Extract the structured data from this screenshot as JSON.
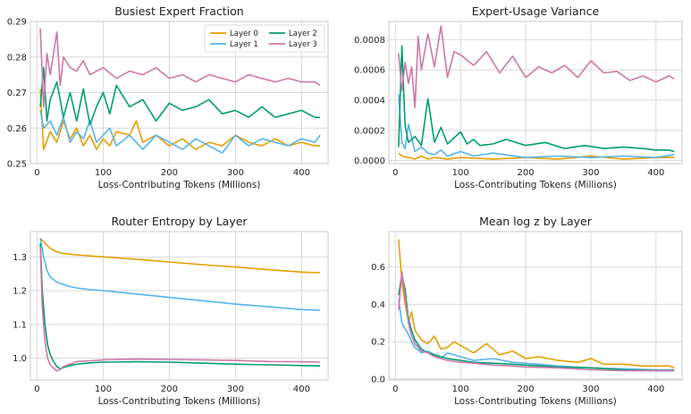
{
  "figure": {
    "background": "#ffffff",
    "plot_bg": "#ffffff",
    "grid_color": "#d9d9d9",
    "frame_color": "#c8c8c8"
  },
  "palette": {
    "Layer 0": "#e69f00",
    "Layer 1": "#56b4e9",
    "Layer 2": "#009e73",
    "Layer 3": "#cc79a7"
  },
  "chart_data": [
    {
      "type": "line",
      "title": "Busiest Expert Fraction",
      "xlabel": "Loss-Contributing Tokens (Millions)",
      "ylabel": "",
      "xlim": [
        -10,
        440
      ],
      "ylim": [
        0.25,
        0.29
      ],
      "xticks": [
        0,
        100,
        200,
        300,
        400
      ],
      "yticks": [
        0.25,
        0.26,
        0.27,
        0.28,
        0.29
      ],
      "ytick_labels": [
        "0.25",
        "0.26",
        "0.27",
        "0.28",
        "0.29"
      ],
      "grid": true,
      "legend": {
        "placement": "top-right",
        "columns": 2,
        "entries": [
          "Layer 0",
          "Layer 1",
          "Layer 2",
          "Layer 3"
        ]
      },
      "series": [
        {
          "name": "Layer 0",
          "color": "#e69f00",
          "x": [
            5,
            10,
            20,
            30,
            40,
            50,
            60,
            70,
            80,
            90,
            100,
            110,
            120,
            140,
            150,
            160,
            180,
            200,
            220,
            240,
            260,
            280,
            300,
            320,
            340,
            360,
            380,
            400,
            420,
            428
          ],
          "y": [
            0.271,
            0.254,
            0.259,
            0.256,
            0.262,
            0.257,
            0.26,
            0.255,
            0.258,
            0.254,
            0.257,
            0.255,
            0.259,
            0.258,
            0.262,
            0.256,
            0.258,
            0.255,
            0.257,
            0.254,
            0.256,
            0.255,
            0.258,
            0.256,
            0.255,
            0.257,
            0.255,
            0.256,
            0.255,
            0.255
          ]
        },
        {
          "name": "Layer 1",
          "color": "#56b4e9",
          "x": [
            5,
            10,
            20,
            30,
            40,
            50,
            60,
            70,
            80,
            90,
            100,
            110,
            120,
            140,
            160,
            180,
            200,
            220,
            240,
            260,
            280,
            300,
            320,
            340,
            360,
            380,
            400,
            420,
            428
          ],
          "y": [
            0.265,
            0.26,
            0.262,
            0.258,
            0.263,
            0.256,
            0.259,
            0.257,
            0.262,
            0.256,
            0.258,
            0.26,
            0.255,
            0.258,
            0.254,
            0.258,
            0.256,
            0.254,
            0.257,
            0.255,
            0.253,
            0.258,
            0.255,
            0.257,
            0.256,
            0.255,
            0.257,
            0.256,
            0.258
          ]
        },
        {
          "name": "Layer 2",
          "color": "#009e73",
          "x": [
            5,
            10,
            15,
            20,
            30,
            40,
            50,
            60,
            70,
            80,
            90,
            100,
            110,
            120,
            140,
            160,
            180,
            200,
            220,
            240,
            260,
            280,
            300,
            320,
            340,
            360,
            380,
            400,
            420,
            428
          ],
          "y": [
            0.266,
            0.277,
            0.262,
            0.268,
            0.273,
            0.263,
            0.27,
            0.262,
            0.271,
            0.261,
            0.266,
            0.27,
            0.264,
            0.272,
            0.266,
            0.268,
            0.262,
            0.267,
            0.265,
            0.266,
            0.268,
            0.264,
            0.265,
            0.263,
            0.266,
            0.263,
            0.264,
            0.265,
            0.263,
            0.263
          ]
        },
        {
          "name": "Layer 3",
          "color": "#cc79a7",
          "x": [
            5,
            10,
            15,
            20,
            30,
            35,
            40,
            50,
            60,
            70,
            80,
            90,
            100,
            120,
            140,
            160,
            180,
            200,
            220,
            240,
            260,
            280,
            300,
            320,
            340,
            360,
            380,
            400,
            420,
            428
          ],
          "y": [
            0.288,
            0.266,
            0.281,
            0.275,
            0.287,
            0.272,
            0.28,
            0.277,
            0.276,
            0.279,
            0.275,
            0.276,
            0.277,
            0.274,
            0.276,
            0.275,
            0.277,
            0.274,
            0.275,
            0.273,
            0.275,
            0.274,
            0.273,
            0.275,
            0.274,
            0.273,
            0.274,
            0.273,
            0.273,
            0.272
          ]
        }
      ]
    },
    {
      "type": "line",
      "title": "Expert-Usage Variance",
      "xlabel": "Loss-Contributing Tokens (Millions)",
      "ylabel": "",
      "xlim": [
        -10,
        440
      ],
      "ylim": [
        -2e-05,
        0.00092
      ],
      "xticks": [
        0,
        100,
        200,
        300,
        400
      ],
      "yticks": [
        0,
        0.0002,
        0.0004,
        0.0006,
        0.0008
      ],
      "ytick_labels": [
        "0.0000",
        "0.0002",
        "0.0004",
        "0.0006",
        "0.0008"
      ],
      "grid": true,
      "series": [
        {
          "name": "Layer 0",
          "color": "#e69f00",
          "x": [
            5,
            10,
            20,
            30,
            40,
            50,
            60,
            80,
            100,
            150,
            200,
            250,
            300,
            350,
            400,
            428
          ],
          "y": [
            5e-05,
            3e-05,
            2e-05,
            1e-05,
            3e-05,
            1e-05,
            2e-05,
            1e-05,
            2e-05,
            1e-05,
            2e-05,
            1e-05,
            3e-05,
            1e-05,
            2e-05,
            2e-05
          ]
        },
        {
          "name": "Layer 1",
          "color": "#56b4e9",
          "x": [
            5,
            10,
            15,
            20,
            30,
            40,
            50,
            60,
            70,
            80,
            100,
            120,
            150,
            200,
            250,
            300,
            350,
            400,
            428
          ],
          "y": [
            0.00044,
            0.00012,
            8e-05,
            0.00024,
            6e-05,
            9e-05,
            5e-05,
            4e-05,
            7e-05,
            3e-05,
            6e-05,
            3e-05,
            5e-05,
            2e-05,
            3e-05,
            2e-05,
            3e-05,
            2e-05,
            4e-05
          ]
        },
        {
          "name": "Layer 2",
          "color": "#009e73",
          "x": [
            5,
            10,
            15,
            20,
            30,
            40,
            50,
            60,
            70,
            80,
            90,
            100,
            110,
            120,
            130,
            150,
            170,
            200,
            230,
            260,
            290,
            320,
            350,
            380,
            400,
            420,
            428
          ],
          "y": [
            9e-05,
            0.00076,
            0.00023,
            0.00012,
            0.00016,
            0.0001,
            0.00041,
            0.00012,
            0.00022,
            0.00011,
            0.00015,
            0.00019,
            0.00011,
            0.00014,
            0.0001,
            0.00011,
            0.00014,
            0.0001,
            0.00012,
            8e-05,
            0.0001,
            8e-05,
            9e-05,
            8e-05,
            7e-05,
            7e-05,
            6e-05
          ]
        },
        {
          "name": "Layer 3",
          "color": "#cc79a7",
          "x": [
            5,
            10,
            15,
            20,
            25,
            30,
            35,
            40,
            50,
            60,
            70,
            80,
            90,
            100,
            120,
            140,
            160,
            180,
            200,
            220,
            240,
            260,
            280,
            300,
            320,
            340,
            360,
            380,
            400,
            420,
            428
          ],
          "y": [
            0.00071,
            0.00046,
            0.00065,
            0.00051,
            0.00062,
            0.00035,
            0.00082,
            0.0006,
            0.00084,
            0.00062,
            0.00089,
            0.00055,
            0.00072,
            0.0007,
            0.00063,
            0.00072,
            0.00058,
            0.00069,
            0.00055,
            0.00062,
            0.00058,
            0.00063,
            0.00055,
            0.00066,
            0.00058,
            0.00059,
            0.00053,
            0.00056,
            0.00052,
            0.00056,
            0.00054
          ]
        }
      ]
    },
    {
      "type": "line",
      "title": "Router Entropy by Layer",
      "xlabel": "Loss-Contributing Tokens (Millions)",
      "ylabel": "",
      "xlim": [
        -10,
        440
      ],
      "ylim": [
        0.935,
        1.375
      ],
      "xticks": [
        0,
        100,
        200,
        300,
        400
      ],
      "yticks": [
        1.0,
        1.1,
        1.2,
        1.3
      ],
      "ytick_labels": [
        "1.0",
        "1.1",
        "1.2",
        "1.3"
      ],
      "grid": true,
      "series": [
        {
          "name": "Layer 0",
          "color": "#e69f00",
          "x": [
            5,
            10,
            20,
            30,
            40,
            50,
            60,
            80,
            100,
            150,
            200,
            250,
            300,
            350,
            400,
            428
          ],
          "y": [
            1.355,
            1.345,
            1.325,
            1.315,
            1.31,
            1.308,
            1.306,
            1.303,
            1.3,
            1.293,
            1.285,
            1.277,
            1.27,
            1.262,
            1.255,
            1.253
          ]
        },
        {
          "name": "Layer 1",
          "color": "#56b4e9",
          "x": [
            5,
            10,
            15,
            20,
            30,
            40,
            50,
            60,
            80,
            100,
            150,
            200,
            250,
            300,
            350,
            400,
            428
          ],
          "y": [
            1.355,
            1.3,
            1.26,
            1.24,
            1.225,
            1.218,
            1.212,
            1.208,
            1.203,
            1.2,
            1.19,
            1.18,
            1.17,
            1.16,
            1.152,
            1.144,
            1.142
          ]
        },
        {
          "name": "Layer 2",
          "color": "#009e73",
          "x": [
            5,
            8,
            12,
            16,
            20,
            25,
            30,
            35,
            40,
            50,
            60,
            80,
            100,
            150,
            200,
            250,
            300,
            350,
            400,
            428
          ],
          "y": [
            1.34,
            1.2,
            1.1,
            1.04,
            1.01,
            0.99,
            0.975,
            0.968,
            0.972,
            0.978,
            0.982,
            0.986,
            0.988,
            0.989,
            0.988,
            0.985,
            0.982,
            0.98,
            0.978,
            0.977
          ]
        },
        {
          "name": "Layer 3",
          "color": "#cc79a7",
          "x": [
            5,
            8,
            12,
            16,
            20,
            25,
            30,
            35,
            40,
            50,
            60,
            80,
            100,
            150,
            200,
            250,
            300,
            350,
            400,
            428
          ],
          "y": [
            1.33,
            1.15,
            1.05,
            1.0,
            0.98,
            0.97,
            0.962,
            0.966,
            0.975,
            0.982,
            0.99,
            0.992,
            0.995,
            0.997,
            0.996,
            0.995,
            0.993,
            0.99,
            0.989,
            0.988
          ]
        }
      ]
    },
    {
      "type": "line",
      "title": "Mean log z by Layer",
      "xlabel": "Loss-Contributing Tokens (Millions)",
      "ylabel": "",
      "xlim": [
        -10,
        440
      ],
      "ylim": [
        -0.005,
        0.79
      ],
      "xticks": [
        0,
        100,
        200,
        300,
        400
      ],
      "yticks": [
        0.0,
        0.2,
        0.4,
        0.6
      ],
      "ytick_labels": [
        "0.0",
        "0.2",
        "0.4",
        "0.6"
      ],
      "grid": true,
      "series": [
        {
          "name": "Layer 0",
          "color": "#e69f00",
          "x": [
            5,
            10,
            15,
            20,
            25,
            30,
            40,
            50,
            60,
            70,
            80,
            90,
            100,
            120,
            140,
            160,
            180,
            200,
            220,
            250,
            280,
            300,
            320,
            350,
            380,
            400,
            420,
            428
          ],
          "y": [
            0.75,
            0.52,
            0.4,
            0.31,
            0.36,
            0.26,
            0.21,
            0.19,
            0.23,
            0.16,
            0.17,
            0.2,
            0.18,
            0.14,
            0.19,
            0.13,
            0.15,
            0.11,
            0.12,
            0.1,
            0.09,
            0.11,
            0.08,
            0.08,
            0.07,
            0.07,
            0.07,
            0.06
          ]
        },
        {
          "name": "Layer 1",
          "color": "#56b4e9",
          "x": [
            5,
            10,
            15,
            20,
            25,
            30,
            40,
            50,
            60,
            70,
            80,
            100,
            120,
            150,
            180,
            200,
            250,
            300,
            350,
            400,
            428
          ],
          "y": [
            0.43,
            0.3,
            0.27,
            0.24,
            0.2,
            0.17,
            0.14,
            0.15,
            0.13,
            0.11,
            0.14,
            0.12,
            0.1,
            0.11,
            0.09,
            0.085,
            0.07,
            0.06,
            0.055,
            0.05,
            0.05
          ]
        },
        {
          "name": "Layer 2",
          "color": "#009e73",
          "x": [
            5,
            10,
            15,
            20,
            25,
            30,
            40,
            50,
            60,
            70,
            80,
            100,
            120,
            150,
            180,
            200,
            250,
            300,
            350,
            400,
            428
          ],
          "y": [
            0.45,
            0.56,
            0.48,
            0.32,
            0.26,
            0.21,
            0.16,
            0.14,
            0.13,
            0.12,
            0.11,
            0.1,
            0.09,
            0.085,
            0.08,
            0.075,
            0.065,
            0.06,
            0.05,
            0.045,
            0.045
          ]
        },
        {
          "name": "Layer 3",
          "color": "#cc79a7",
          "x": [
            5,
            10,
            15,
            20,
            25,
            30,
            40,
            50,
            60,
            70,
            80,
            100,
            120,
            150,
            180,
            200,
            250,
            300,
            350,
            400,
            428
          ],
          "y": [
            0.37,
            0.575,
            0.44,
            0.3,
            0.23,
            0.19,
            0.15,
            0.14,
            0.12,
            0.11,
            0.1,
            0.09,
            0.085,
            0.075,
            0.07,
            0.065,
            0.06,
            0.05,
            0.045,
            0.045,
            0.045
          ]
        }
      ]
    }
  ]
}
